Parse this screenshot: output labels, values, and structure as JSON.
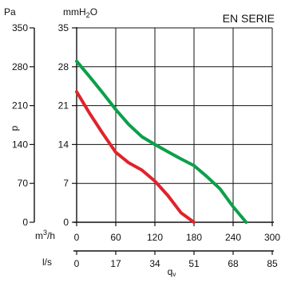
{
  "chart_data": {
    "type": "line",
    "title": "EN SERIE",
    "ylabel": "p",
    "xlabel": "q",
    "xlabel_sub": "v",
    "y_units": {
      "left_outer": "Pa",
      "left_inner": "mmH",
      "left_inner_sub": "2",
      "left_inner_tail": "O"
    },
    "x_units": {
      "primary": "m",
      "primary_sup": "3",
      "primary_tail": "/h",
      "secondary": "l/s"
    },
    "xlim": [
      0,
      300
    ],
    "ylim": [
      0,
      35
    ],
    "grid": true,
    "x_ticks": [
      "0",
      "60",
      "120",
      "180",
      "240",
      "300"
    ],
    "x_ticks_ls": [
      "0",
      "17",
      "34",
      "51",
      "68",
      "85"
    ],
    "y_ticks_mmh2o": [
      "0",
      "7",
      "14",
      "21",
      "28",
      "35"
    ],
    "y_ticks_pa": [
      "0",
      "70",
      "140",
      "210",
      "280",
      "350"
    ],
    "series": [
      {
        "color": "#0aa04a",
        "x": [
          0,
          20,
          40,
          60,
          80,
          100,
          120,
          140,
          160,
          180,
          200,
          220,
          240,
          260
        ],
        "y": [
          29,
          26.2,
          23.3,
          20.3,
          17.6,
          15.4,
          14.0,
          12.7,
          11.4,
          10.2,
          8.2,
          6.0,
          2.8,
          0
        ]
      },
      {
        "color": "#e0232a",
        "x": [
          0,
          20,
          40,
          60,
          80,
          100,
          120,
          140,
          160,
          180
        ],
        "y": [
          23.5,
          19.6,
          16.0,
          12.6,
          10.7,
          9.4,
          7.4,
          4.8,
          1.7,
          0
        ]
      }
    ]
  }
}
